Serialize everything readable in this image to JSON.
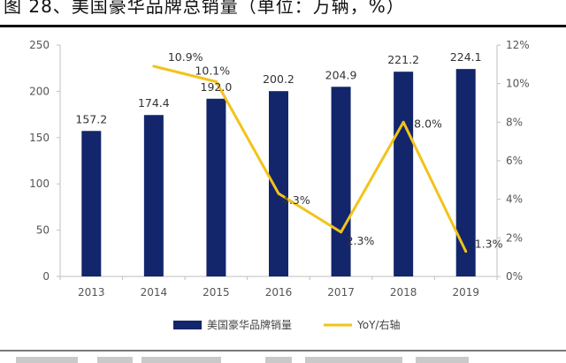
{
  "title": "图 28、美国豪华品牌总销量（单位：万辆，%）",
  "chart_data": {
    "type": "bar",
    "categories": [
      "2013",
      "2014",
      "2015",
      "2016",
      "2017",
      "2018",
      "2019"
    ],
    "series": [
      {
        "name": "美国豪华品牌销量",
        "type": "bar",
        "axis": "left",
        "values": [
          157.2,
          174.4,
          192.0,
          200.2,
          204.9,
          221.2,
          224.1
        ],
        "labels": [
          "157.2",
          "174.4",
          "192.0",
          "200.2",
          "204.9",
          "221.2",
          "224.1"
        ],
        "color": "#13266b"
      },
      {
        "name": "YoY/右轴",
        "type": "line",
        "axis": "right",
        "values": [
          null,
          10.9,
          10.1,
          4.3,
          2.3,
          8.0,
          1.3
        ],
        "labels": [
          "",
          "10.9%",
          "10.1%",
          "4.3%",
          "2.3%",
          "8.0%",
          "1.3%"
        ],
        "color": "#f2c31a"
      }
    ],
    "y_left": {
      "min": 0,
      "max": 250,
      "ticks": [
        "0",
        "50",
        "100",
        "150",
        "200",
        "250"
      ]
    },
    "y_right": {
      "min": 0,
      "max": 12,
      "ticks": [
        "0%",
        "2%",
        "4%",
        "6%",
        "8%",
        "10%",
        "12%"
      ]
    },
    "grid": false,
    "legend": "bottom-center"
  }
}
